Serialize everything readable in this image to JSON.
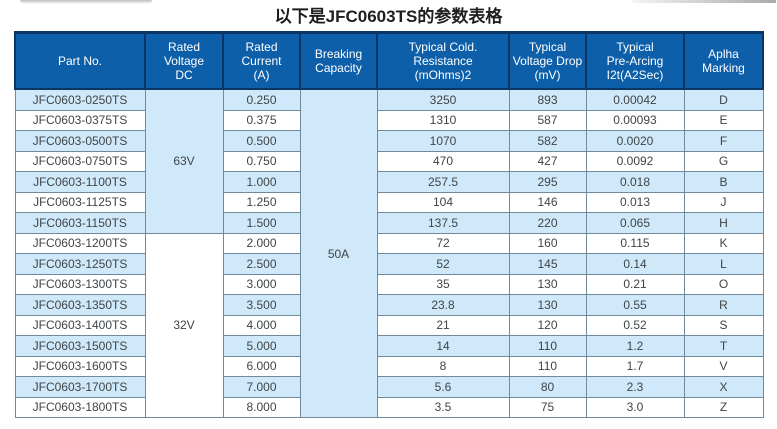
{
  "page": {
    "title": "以下是JFC0603TS的参数表格"
  },
  "table": {
    "columns": [
      {
        "id": "part",
        "label": "Part No."
      },
      {
        "id": "voltage",
        "label": "Rated\nVoltage\nDC"
      },
      {
        "id": "current",
        "label": "Rated\nCurrent\n(A)"
      },
      {
        "id": "breaking",
        "label": "Breaking\nCapacity"
      },
      {
        "id": "resistance",
        "label": "Typical Cold.\nResistance\n(mOhms)2"
      },
      {
        "id": "vdrop",
        "label": "Typical\nVoltage Drop\n(mV)"
      },
      {
        "id": "prearcing",
        "label": "Typical\nPre-Arcing\nI2t(A2Sec)"
      },
      {
        "id": "marking",
        "label": "Aplha\nMarking"
      }
    ],
    "voltage_groups": [
      {
        "label": "63V",
        "row_span": 7,
        "shaded": true
      },
      {
        "label": "32V",
        "row_span": 9,
        "shaded": false
      }
    ],
    "breaking_capacity": {
      "label": "50A",
      "row_span": 16,
      "shaded": true
    },
    "rows": [
      {
        "part": "JFC0603-0250TS",
        "current": "0.250",
        "resistance": "3250",
        "voltage_drop": "893",
        "pre_arcing": "0.00042",
        "marking": "D"
      },
      {
        "part": "JFC0603-0375TS",
        "current": "0.375",
        "resistance": "1310",
        "voltage_drop": "587",
        "pre_arcing": "0.00093",
        "marking": "E"
      },
      {
        "part": "JFC0603-0500TS",
        "current": "0.500",
        "resistance": "1070",
        "voltage_drop": "582",
        "pre_arcing": "0.0020",
        "marking": "F"
      },
      {
        "part": "JFC0603-0750TS",
        "current": "0.750",
        "resistance": "470",
        "voltage_drop": "427",
        "pre_arcing": "0.0092",
        "marking": "G"
      },
      {
        "part": "JFC0603-1100TS",
        "current": "1.000",
        "resistance": "257.5",
        "voltage_drop": "295",
        "pre_arcing": "0.018",
        "marking": "B"
      },
      {
        "part": "JFC0603-1125TS",
        "current": "1.250",
        "resistance": "104",
        "voltage_drop": "146",
        "pre_arcing": "0.013",
        "marking": "J"
      },
      {
        "part": "JFC0603-1150TS",
        "current": "1.500",
        "resistance": "137.5",
        "voltage_drop": "220",
        "pre_arcing": "0.065",
        "marking": "H"
      },
      {
        "part": "JFC0603-1200TS",
        "current": "2.000",
        "resistance": "72",
        "voltage_drop": "160",
        "pre_arcing": "0.115",
        "marking": "K"
      },
      {
        "part": "JFC0603-1250TS",
        "current": "2.500",
        "resistance": "52",
        "voltage_drop": "145",
        "pre_arcing": "0.14",
        "marking": "L"
      },
      {
        "part": "JFC0603-1300TS",
        "current": "3.000",
        "resistance": "35",
        "voltage_drop": "130",
        "pre_arcing": "0.21",
        "marking": "O"
      },
      {
        "part": "JFC0603-1350TS",
        "current": "3.500",
        "resistance": "23.8",
        "voltage_drop": "130",
        "pre_arcing": "0.55",
        "marking": "R"
      },
      {
        "part": "JFC0603-1400TS",
        "current": "4.000",
        "resistance": "21",
        "voltage_drop": "120",
        "pre_arcing": "0.52",
        "marking": "S"
      },
      {
        "part": "JFC0603-1500TS",
        "current": "5.000",
        "resistance": "14",
        "voltage_drop": "110",
        "pre_arcing": "1.2",
        "marking": "T"
      },
      {
        "part": "JFC0603-1600TS",
        "current": "6.000",
        "resistance": "8",
        "voltage_drop": "110",
        "pre_arcing": "1.7",
        "marking": "V"
      },
      {
        "part": "JFC0603-1700TS",
        "current": "7.000",
        "resistance": "5.6",
        "voltage_drop": "80",
        "pre_arcing": "2.3",
        "marking": "X"
      },
      {
        "part": "JFC0603-1800TS",
        "current": "8.000",
        "resistance": "3.5",
        "voltage_drop": "75",
        "pre_arcing": "3.0",
        "marking": "Z"
      }
    ]
  },
  "colors": {
    "header_bg": "#0d5fa9",
    "header_border": "#0a3564",
    "header_text": "#ffffff",
    "row_shaded": "#cfe9fa",
    "row_plain": "#ffffff",
    "body_border": "#708a99",
    "outer_border": "#4d4d4d",
    "body_text": "#3f4447"
  }
}
